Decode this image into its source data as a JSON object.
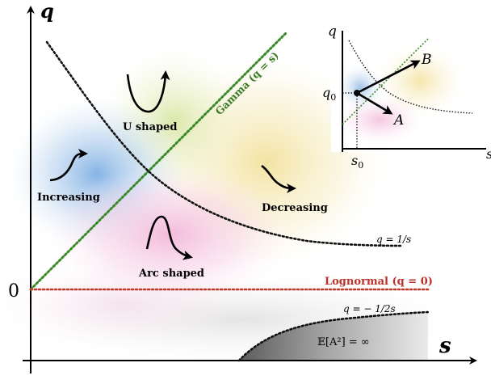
{
  "axes": {
    "x_label": "s",
    "y_label": "q",
    "origin_label": "0"
  },
  "regions": {
    "increasing": "Increasing",
    "u_shaped": "U shaped",
    "decreasing": "Decreasing",
    "arc_shaped": "Arc shaped"
  },
  "curves": {
    "gamma": "Gamma (q = s)",
    "one_over_s": "q = 1/s",
    "lognormal": "Lognormal (q = 0)",
    "neg_half": "q = − 1/2s",
    "infinite_moment": "𝔼[A²] = ∞"
  },
  "inset": {
    "y_label": "q",
    "x_label": "s",
    "q0_label": "q",
    "q0_sub": "0",
    "s0_label": "s",
    "s0_sub": "0",
    "vector_a": "A",
    "vector_b": "B"
  },
  "colors": {
    "gamma_line": "#3a8a2a",
    "gamma_text": "#3a7a24",
    "lognormal_line": "#c0392b",
    "lognormal_text": "#b8322a",
    "dotted_curve": "#111111",
    "blue_blob": "#7fb0e0",
    "yellow_blob": "#f3e29a",
    "pink_blob": "#f0b3d8",
    "green_blob": "#d9e79a"
  }
}
